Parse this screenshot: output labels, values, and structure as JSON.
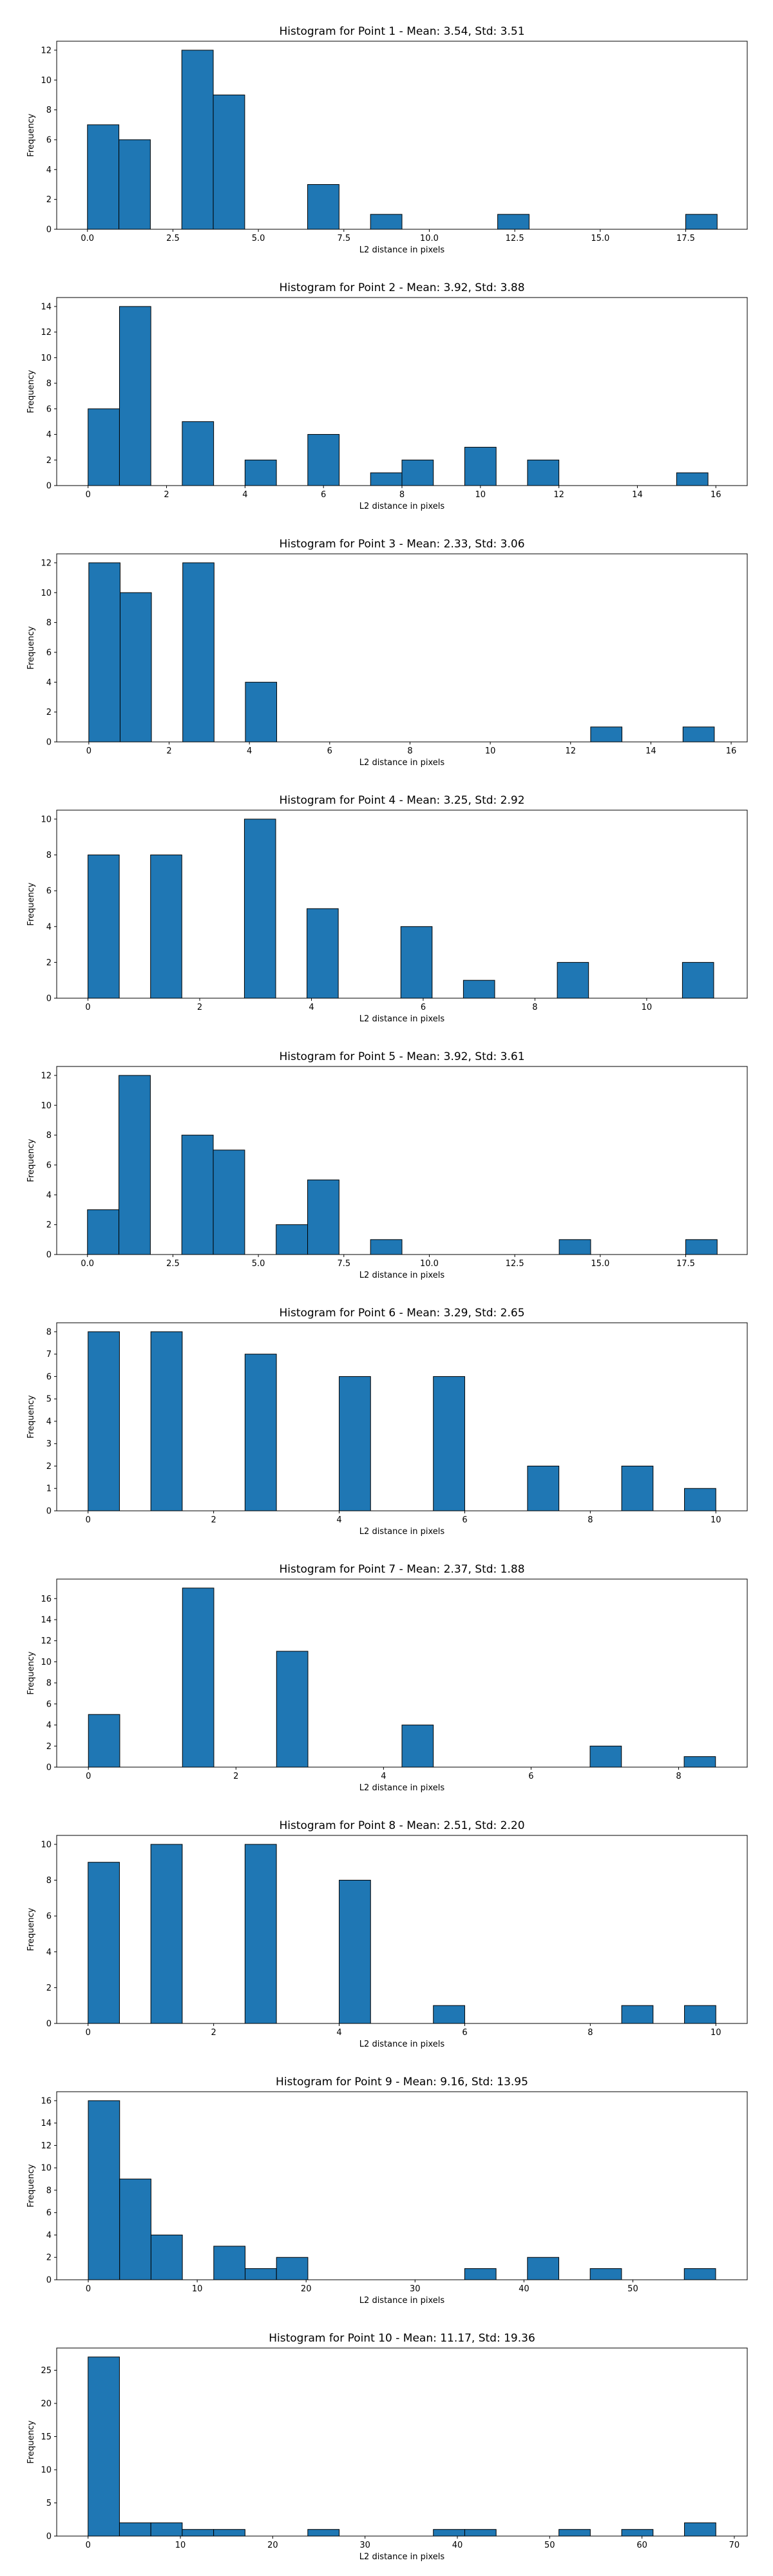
{
  "colors": {
    "bar": "#1f77b4",
    "edge": "#000000",
    "axis": "#000000",
    "text": "#000000"
  },
  "chart_data": [
    {
      "type": "bar",
      "title": "Histogram for Point 1 - Mean: 3.54, Std: 3.51",
      "xlabel": "L2 distance in pixels",
      "ylabel": "Frequency",
      "bin_width": 0.92,
      "xlim": [
        -0.9,
        19.3
      ],
      "ylim": [
        0,
        12.6
      ],
      "xticks": [
        0,
        2.5,
        5,
        7.5,
        10,
        12.5,
        15,
        17.5
      ],
      "xtick_labels": [
        "0.0",
        "2.5",
        "5.0",
        "7.5",
        "10.0",
        "12.5",
        "15.0",
        "17.5"
      ],
      "yticks": [
        0,
        2,
        4,
        6,
        8,
        10,
        12
      ],
      "bins": [
        {
          "x": 0.0,
          "count": 7
        },
        {
          "x": 0.92,
          "count": 6
        },
        {
          "x": 2.76,
          "count": 12
        },
        {
          "x": 3.68,
          "count": 9
        },
        {
          "x": 6.44,
          "count": 3
        },
        {
          "x": 8.28,
          "count": 1
        },
        {
          "x": 12.0,
          "count": 1
        },
        {
          "x": 17.5,
          "count": 1
        }
      ]
    },
    {
      "type": "bar",
      "title": "Histogram for Point 2 - Mean: 3.92, Std: 3.88",
      "xlabel": "L2 distance in pixels",
      "ylabel": "Frequency",
      "bin_width": 0.8,
      "xlim": [
        -0.8,
        16.8
      ],
      "ylim": [
        0,
        14.7
      ],
      "xticks": [
        0,
        2,
        4,
        6,
        8,
        10,
        12,
        14,
        16
      ],
      "xtick_labels": [
        "0",
        "2",
        "4",
        "6",
        "8",
        "10",
        "12",
        "14",
        "16"
      ],
      "yticks": [
        0,
        2,
        4,
        6,
        8,
        10,
        12,
        14
      ],
      "bins": [
        {
          "x": 0.0,
          "count": 6
        },
        {
          "x": 0.8,
          "count": 14
        },
        {
          "x": 2.4,
          "count": 5
        },
        {
          "x": 4.0,
          "count": 2
        },
        {
          "x": 5.6,
          "count": 4
        },
        {
          "x": 7.2,
          "count": 1
        },
        {
          "x": 8.0,
          "count": 2
        },
        {
          "x": 9.6,
          "count": 3
        },
        {
          "x": 11.2,
          "count": 2
        },
        {
          "x": 15.0,
          "count": 1
        }
      ]
    },
    {
      "type": "bar",
      "title": "Histogram for Point 3 - Mean: 2.33, Std: 3.06",
      "xlabel": "L2 distance in pixels",
      "ylabel": "Frequency",
      "bin_width": 0.78,
      "xlim": [
        -0.8,
        16.4
      ],
      "ylim": [
        0,
        12.6
      ],
      "xticks": [
        0,
        2,
        4,
        6,
        8,
        10,
        12,
        14,
        16
      ],
      "xtick_labels": [
        "0",
        "2",
        "4",
        "6",
        "8",
        "10",
        "12",
        "14",
        "16"
      ],
      "yticks": [
        0,
        2,
        4,
        6,
        8,
        10,
        12
      ],
      "bins": [
        {
          "x": 0.0,
          "count": 12
        },
        {
          "x": 0.78,
          "count": 10
        },
        {
          "x": 2.34,
          "count": 12
        },
        {
          "x": 3.9,
          "count": 4
        },
        {
          "x": 12.5,
          "count": 1
        },
        {
          "x": 14.8,
          "count": 1
        }
      ]
    },
    {
      "type": "bar",
      "title": "Histogram for Point 4 - Mean: 3.25, Std: 2.92",
      "xlabel": "L2 distance in pixels",
      "ylabel": "Frequency",
      "bin_width": 0.56,
      "xlim": [
        -0.56,
        11.8
      ],
      "ylim": [
        0,
        10.5
      ],
      "xticks": [
        0,
        2,
        4,
        6,
        8,
        10
      ],
      "xtick_labels": [
        "0",
        "2",
        "4",
        "6",
        "8",
        "10"
      ],
      "yticks": [
        0,
        2,
        4,
        6,
        8,
        10
      ],
      "bins": [
        {
          "x": 0.0,
          "count": 8
        },
        {
          "x": 1.12,
          "count": 8
        },
        {
          "x": 2.8,
          "count": 10
        },
        {
          "x": 3.92,
          "count": 5
        },
        {
          "x": 5.6,
          "count": 4
        },
        {
          "x": 6.72,
          "count": 1
        },
        {
          "x": 8.4,
          "count": 2
        },
        {
          "x": 10.64,
          "count": 2
        }
      ]
    },
    {
      "type": "bar",
      "title": "Histogram for Point 5 - Mean: 3.92, Std: 3.61",
      "xlabel": "L2 distance in pixels",
      "ylabel": "Frequency",
      "bin_width": 0.92,
      "xlim": [
        -0.9,
        19.3
      ],
      "ylim": [
        0,
        12.6
      ],
      "xticks": [
        0,
        2.5,
        5,
        7.5,
        10,
        12.5,
        15,
        17.5
      ],
      "xtick_labels": [
        "0.0",
        "2.5",
        "5.0",
        "7.5",
        "10.0",
        "12.5",
        "15.0",
        "17.5"
      ],
      "yticks": [
        0,
        2,
        4,
        6,
        8,
        10,
        12
      ],
      "bins": [
        {
          "x": 0.0,
          "count": 3
        },
        {
          "x": 0.92,
          "count": 12
        },
        {
          "x": 2.76,
          "count": 8
        },
        {
          "x": 3.68,
          "count": 7
        },
        {
          "x": 5.52,
          "count": 2
        },
        {
          "x": 6.44,
          "count": 5
        },
        {
          "x": 8.28,
          "count": 1
        },
        {
          "x": 13.8,
          "count": 1
        },
        {
          "x": 17.5,
          "count": 1
        }
      ]
    },
    {
      "type": "bar",
      "title": "Histogram for Point 6 - Mean: 3.29, Std: 2.65",
      "xlabel": "L2 distance in pixels",
      "ylabel": "Frequency",
      "bin_width": 0.5,
      "xlim": [
        -0.5,
        10.5
      ],
      "ylim": [
        0,
        8.4
      ],
      "xticks": [
        0,
        2,
        4,
        6,
        8,
        10
      ],
      "xtick_labels": [
        "0",
        "2",
        "4",
        "6",
        "8",
        "10"
      ],
      "yticks": [
        0,
        1,
        2,
        3,
        4,
        5,
        6,
        7,
        8
      ],
      "bins": [
        {
          "x": 0.0,
          "count": 8
        },
        {
          "x": 1.0,
          "count": 8
        },
        {
          "x": 2.5,
          "count": 7
        },
        {
          "x": 4.0,
          "count": 6
        },
        {
          "x": 5.5,
          "count": 6
        },
        {
          "x": 7.0,
          "count": 2
        },
        {
          "x": 8.5,
          "count": 2
        },
        {
          "x": 9.5,
          "count": 1
        }
      ]
    },
    {
      "type": "bar",
      "title": "Histogram for Point 7 - Mean: 2.37, Std: 1.88",
      "xlabel": "L2 distance in pixels",
      "ylabel": "Frequency",
      "bin_width": 0.425,
      "xlim": [
        -0.43,
        8.93
      ],
      "ylim": [
        0,
        17.85
      ],
      "xticks": [
        0,
        2,
        4,
        6,
        8
      ],
      "xtick_labels": [
        "0",
        "2",
        "4",
        "6",
        "8"
      ],
      "yticks": [
        0,
        2,
        4,
        6,
        8,
        10,
        12,
        14,
        16
      ],
      "bins": [
        {
          "x": 0.0,
          "count": 5
        },
        {
          "x": 1.275,
          "count": 17
        },
        {
          "x": 2.55,
          "count": 11
        },
        {
          "x": 4.25,
          "count": 4
        },
        {
          "x": 6.8,
          "count": 2
        },
        {
          "x": 8.075,
          "count": 1
        }
      ]
    },
    {
      "type": "bar",
      "title": "Histogram for Point 8 - Mean: 2.51, Std: 2.20",
      "xlabel": "L2 distance in pixels",
      "ylabel": "Frequency",
      "bin_width": 0.5,
      "xlim": [
        -0.5,
        10.5
      ],
      "ylim": [
        0,
        10.5
      ],
      "xticks": [
        0,
        2,
        4,
        6,
        8,
        10
      ],
      "xtick_labels": [
        "0",
        "2",
        "4",
        "6",
        "8",
        "10"
      ],
      "yticks": [
        0,
        2,
        4,
        6,
        8,
        10
      ],
      "bins": [
        {
          "x": 0.0,
          "count": 9
        },
        {
          "x": 1.0,
          "count": 10
        },
        {
          "x": 2.5,
          "count": 10
        },
        {
          "x": 4.0,
          "count": 8
        },
        {
          "x": 5.5,
          "count": 1
        },
        {
          "x": 8.5,
          "count": 1
        },
        {
          "x": 9.5,
          "count": 1
        }
      ]
    },
    {
      "type": "bar",
      "title": "Histogram for Point 9 - Mean: 9.16, Std: 13.95",
      "xlabel": "L2 distance in pixels",
      "ylabel": "Frequency",
      "bin_width": 2.88,
      "xlim": [
        -2.9,
        60.5
      ],
      "ylim": [
        0,
        16.8
      ],
      "xticks": [
        0,
        10,
        20,
        30,
        40,
        50
      ],
      "xtick_labels": [
        "0",
        "10",
        "20",
        "30",
        "40",
        "50"
      ],
      "yticks": [
        0,
        2,
        4,
        6,
        8,
        10,
        12,
        14,
        16
      ],
      "bins": [
        {
          "x": 0.0,
          "count": 16
        },
        {
          "x": 2.88,
          "count": 9
        },
        {
          "x": 5.76,
          "count": 4
        },
        {
          "x": 11.52,
          "count": 3
        },
        {
          "x": 14.4,
          "count": 1
        },
        {
          "x": 17.28,
          "count": 2
        },
        {
          "x": 34.56,
          "count": 1
        },
        {
          "x": 40.32,
          "count": 2
        },
        {
          "x": 46.08,
          "count": 1
        },
        {
          "x": 54.72,
          "count": 1
        }
      ]
    },
    {
      "type": "bar",
      "title": "Histogram for Point 10 - Mean: 11.17, Std: 19.36",
      "xlabel": "L2 distance in pixels",
      "ylabel": "Frequency",
      "bin_width": 3.4,
      "xlim": [
        -3.4,
        71.4
      ],
      "ylim": [
        0,
        28.35
      ],
      "xticks": [
        0,
        10,
        20,
        30,
        40,
        50,
        60,
        70
      ],
      "xtick_labels": [
        "0",
        "10",
        "20",
        "30",
        "40",
        "50",
        "60",
        "70"
      ],
      "yticks": [
        0,
        5,
        10,
        15,
        20,
        25
      ],
      "bins": [
        {
          "x": 0.0,
          "count": 27
        },
        {
          "x": 3.4,
          "count": 2
        },
        {
          "x": 6.8,
          "count": 2
        },
        {
          "x": 10.2,
          "count": 1
        },
        {
          "x": 13.6,
          "count": 1
        },
        {
          "x": 23.8,
          "count": 1
        },
        {
          "x": 37.4,
          "count": 1
        },
        {
          "x": 40.8,
          "count": 1
        },
        {
          "x": 51.0,
          "count": 1
        },
        {
          "x": 57.8,
          "count": 1
        },
        {
          "x": 64.6,
          "count": 2
        }
      ]
    }
  ]
}
